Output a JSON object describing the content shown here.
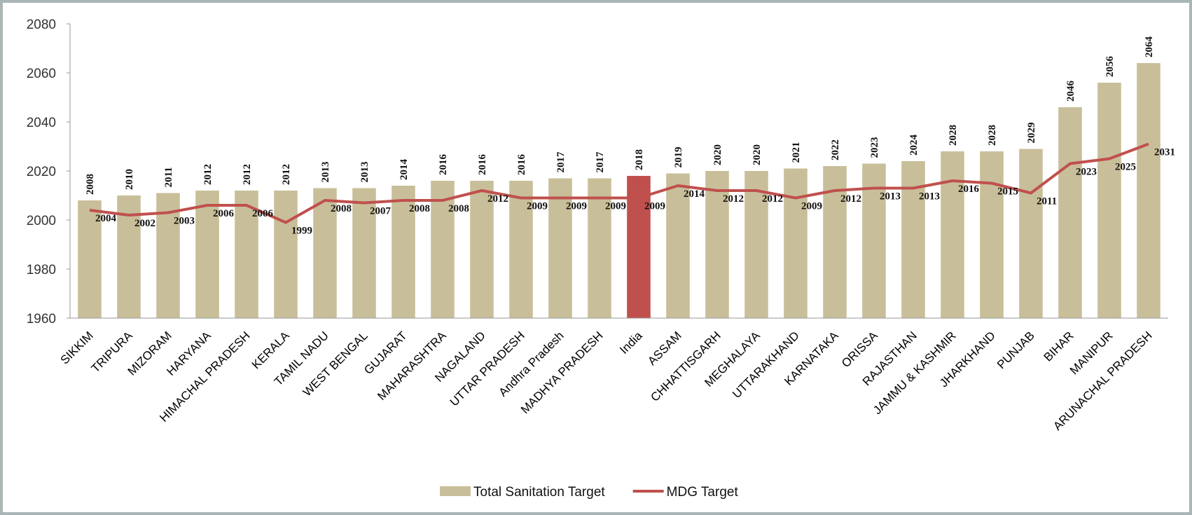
{
  "chart_data": {
    "type": "bar",
    "categories": [
      "SIKKIM",
      "TRIPURA",
      "MIZORAM",
      "HARYANA",
      "HIMACHAL PRADESH",
      "KERALA",
      "TAMIL NADU",
      "WEST BENGAL",
      "GUJARAT",
      "MAHARASHTRA",
      "NAGALAND",
      "UTTAR PRADESH",
      "Andhra Pradesh",
      "MADHYA PRADESH",
      "India",
      "ASSAM",
      "CHHATTISGARH",
      "MEGHALAYA",
      "UTTARAKHAND",
      "KARNATAKA",
      "ORISSA",
      "RAJASTHAN",
      "JAMMU & KASHMIR",
      "JHARKHAND",
      "PUNJAB",
      "BIHAR",
      "MANIPUR",
      "ARUNACHAL PRADESH"
    ],
    "series": [
      {
        "name": "Total Sanitation Target",
        "type": "bar",
        "color": "#c8bf9a",
        "highlight": {
          "category": "India",
          "color": "#c0504d"
        },
        "values": [
          2008,
          2010,
          2011,
          2012,
          2012,
          2012,
          2013,
          2013,
          2014,
          2016,
          2016,
          2016,
          2017,
          2017,
          2018,
          2019,
          2020,
          2020,
          2021,
          2022,
          2023,
          2024,
          2028,
          2028,
          2029,
          2046,
          2056,
          2064
        ]
      },
      {
        "name": "MDG Target",
        "type": "line",
        "color": "#c0504d",
        "values": [
          2004,
          2002,
          2003,
          2006,
          2006,
          1999,
          2008,
          2007,
          2008,
          2008,
          2012,
          2009,
          2009,
          2009,
          2009,
          2014,
          2012,
          2012,
          2009,
          2012,
          2013,
          2013,
          2016,
          2015,
          2011,
          2023,
          2025,
          2031
        ]
      }
    ],
    "ylim": [
      1960,
      2080
    ],
    "yticks": [
      1960,
      1980,
      2000,
      2020,
      2040,
      2060,
      2080
    ],
    "legend": "bottom"
  }
}
